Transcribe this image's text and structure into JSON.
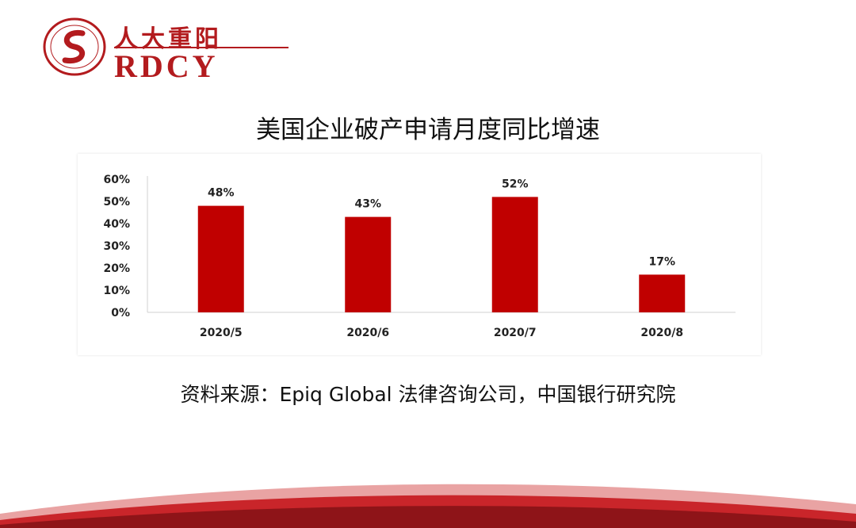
{
  "logo": {
    "name_cn": "人大重阳",
    "name_en": "RDCY",
    "icon": "rdcy-seal-logo",
    "color": "#b31b1e"
  },
  "chart_data": {
    "type": "bar",
    "title": "美国企业破产申请月度同比增速",
    "categories": [
      "2020/5",
      "2020/6",
      "2020/7",
      "2020/8"
    ],
    "values": [
      48,
      43,
      52,
      17
    ],
    "data_labels": [
      "48%",
      "43%",
      "52%",
      "17%"
    ],
    "ylim": [
      0,
      60
    ],
    "yticks": [
      0,
      10,
      20,
      30,
      40,
      50,
      60
    ],
    "ytick_labels": [
      "0%",
      "10%",
      "20%",
      "30%",
      "40%",
      "50%",
      "60%"
    ],
    "grid": false,
    "bar_color": "#c00000"
  },
  "source": "资料来源：Epiq Global 法律咨询公司，中国银行研究院"
}
